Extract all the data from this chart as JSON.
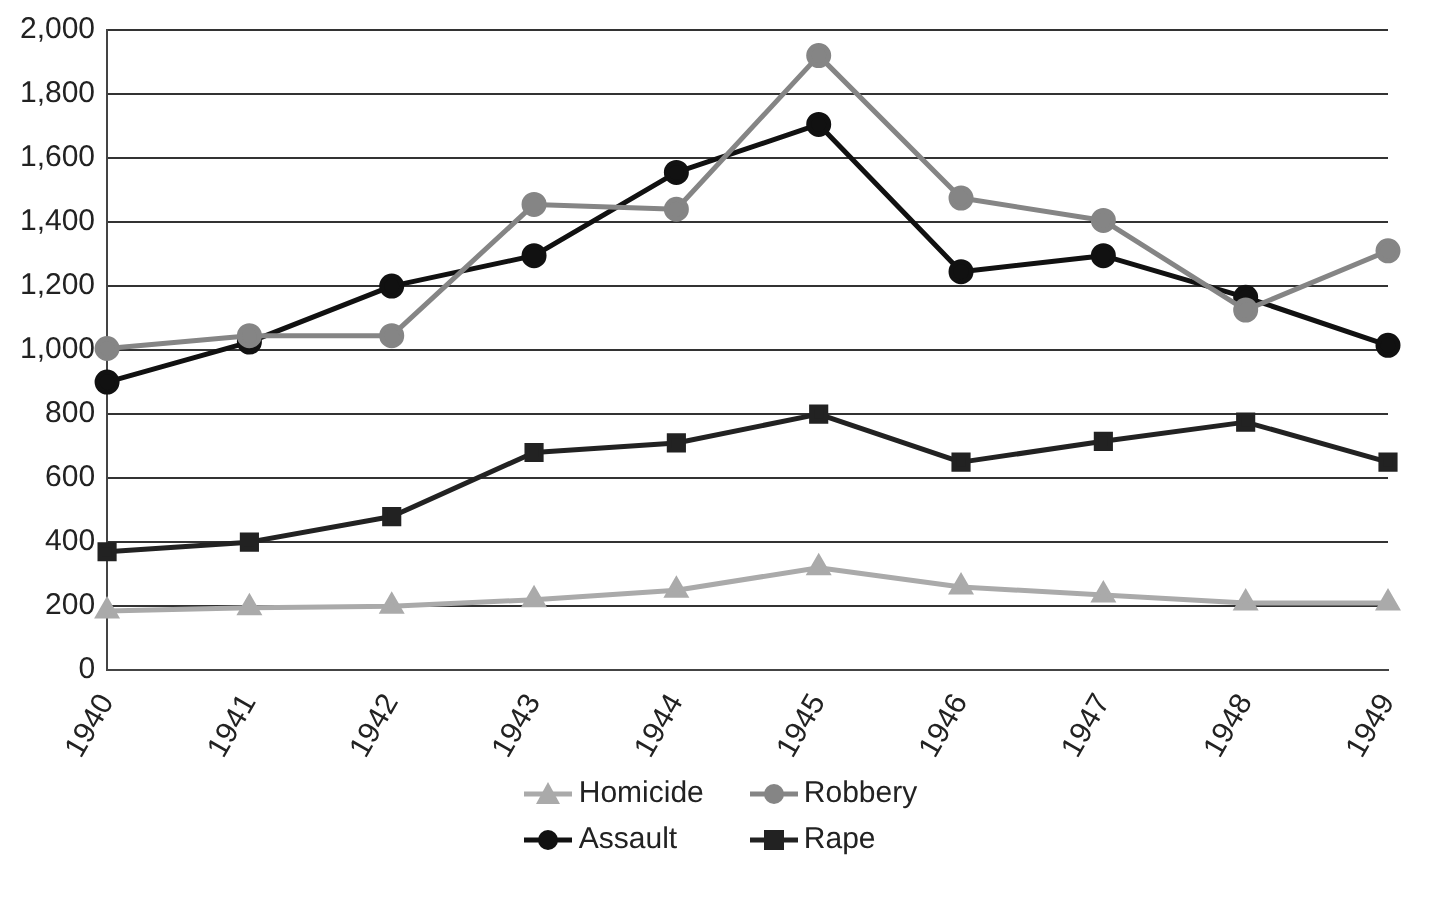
{
  "chart_data": {
    "type": "line",
    "categories": [
      "1940",
      "1941",
      "1942",
      "1943",
      "1944",
      "1945",
      "1946",
      "1947",
      "1948",
      "1949"
    ],
    "ylim": [
      0,
      2000
    ],
    "yticks": [
      {
        "value": 0,
        "label": "0"
      },
      {
        "value": 200,
        "label": "200"
      },
      {
        "value": 400,
        "label": "400"
      },
      {
        "value": 600,
        "label": "600"
      },
      {
        "value": 800,
        "label": "800"
      },
      {
        "value": 1000,
        "label": "1,000"
      },
      {
        "value": 1200,
        "label": "1,200"
      },
      {
        "value": 1400,
        "label": "1,400"
      },
      {
        "value": 1600,
        "label": "1,600"
      },
      {
        "value": 1800,
        "label": "1,800"
      },
      {
        "value": 2000,
        "label": "2,000"
      }
    ],
    "grid": "y",
    "legend": "bottom",
    "series": [
      {
        "name": "Homicide",
        "color": "#aaaaaa",
        "marker": "triangle",
        "values": [
          185,
          195,
          200,
          220,
          250,
          320,
          260,
          235,
          210,
          210
        ]
      },
      {
        "name": "Robbery",
        "color": "#858585",
        "marker": "circle",
        "values": [
          1005,
          1045,
          1045,
          1455,
          1440,
          1920,
          1475,
          1405,
          1125,
          1310
        ]
      },
      {
        "name": "Assault",
        "color": "#111111",
        "marker": "circle",
        "values": [
          900,
          1025,
          1200,
          1295,
          1555,
          1705,
          1245,
          1295,
          1165,
          1015
        ]
      },
      {
        "name": "Rape",
        "color": "#222222",
        "marker": "square",
        "values": [
          370,
          400,
          480,
          680,
          710,
          800,
          650,
          715,
          775,
          650
        ]
      }
    ]
  }
}
